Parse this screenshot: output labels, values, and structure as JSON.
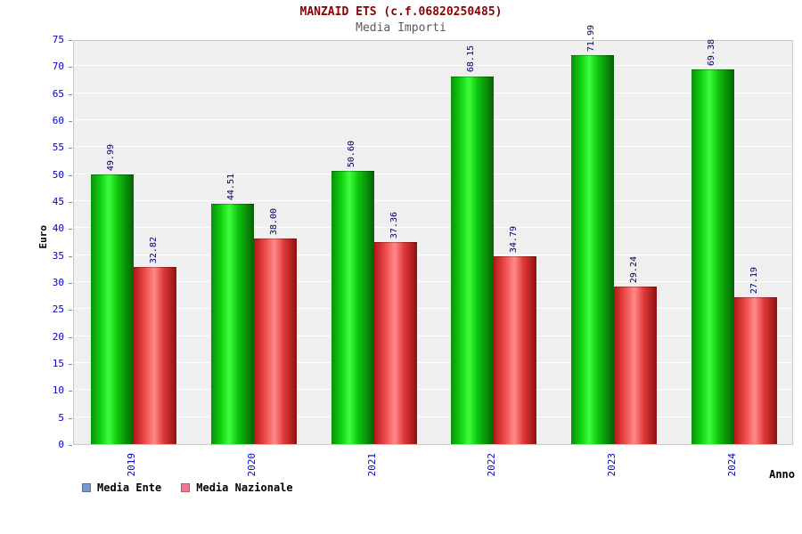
{
  "header": {
    "title": "MANZAID ETS (c.f.06820250485)",
    "subtitle": "Media Importi"
  },
  "axes": {
    "y_label": "Euro",
    "x_label": "Anno",
    "ylim": [
      0,
      75
    ],
    "y_ticks": [
      0,
      5,
      10,
      15,
      20,
      25,
      30,
      35,
      40,
      45,
      50,
      55,
      60,
      65,
      70,
      75
    ],
    "tick_label_color": "#0000cc",
    "value_label_color": "#000066"
  },
  "legend": {
    "items": [
      {
        "label": "Media Ente",
        "swatch_color": "#7799cc"
      },
      {
        "label": "Media Nazionale",
        "swatch_color": "#ee7790"
      }
    ]
  },
  "chart_data": {
    "type": "bar",
    "title": "MANZAID ETS (c.f.06820250485)",
    "subtitle": "Media Importi",
    "categories": [
      "2019",
      "2020",
      "2021",
      "2022",
      "2023",
      "2024"
    ],
    "series": [
      {
        "name": "Media Ente",
        "bar_color": "#00cc00",
        "values": [
          49.99,
          44.51,
          50.6,
          68.15,
          71.99,
          69.38
        ]
      },
      {
        "name": "Media Nazionale",
        "bar_color": "#ee3333",
        "values": [
          32.82,
          38.0,
          37.36,
          34.79,
          29.24,
          27.19
        ]
      }
    ],
    "xlabel": "Anno",
    "ylabel": "Euro",
    "ylim": [
      0,
      75
    ],
    "grid": true,
    "legend_position": "bottom-left",
    "background_plot": "#efefef",
    "background_page": "#ffffff"
  }
}
